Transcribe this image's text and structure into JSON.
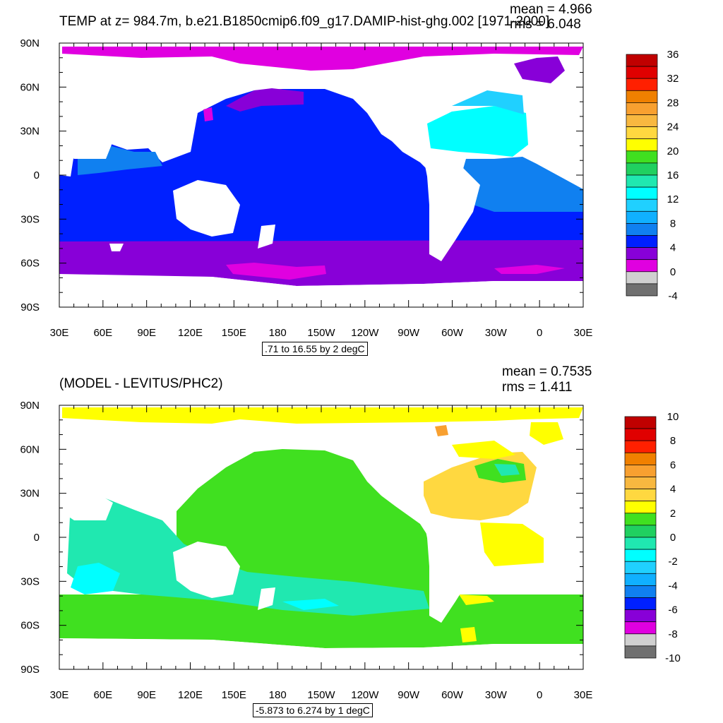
{
  "panels": [
    {
      "title": "TEMP at z= 984.7m, b.e21.B1850cmip6.f09_g17.DAMIP-hist-ghg.002 [1971-2000]",
      "stats": {
        "mean": "mean = 4.966",
        "rms": "rms = 6.048"
      },
      "contour_info": ".71 to 16.55 by 2 degC",
      "colorbar": {
        "labels": [
          "36",
          "32",
          "28",
          "24",
          "20",
          "16",
          "12",
          "8",
          "4",
          "0",
          "-4"
        ],
        "colors": [
          "#c00000",
          "#e00000",
          "#ff2000",
          "#f08000",
          "#f8a030",
          "#f8b840",
          "#ffd840",
          "#ffff00",
          "#40e020",
          "#20d060",
          "#20e8b0",
          "#00ffff",
          "#20d0ff",
          "#10b0ff",
          "#1080f0",
          "#0020ff",
          "#8800d8",
          "#e000e0",
          "#d0d0d0",
          "#707070"
        ]
      },
      "x_ticks": [
        "30E",
        "60E",
        "90E",
        "120E",
        "150E",
        "180",
        "150W",
        "120W",
        "90W",
        "60W",
        "30W",
        "0",
        "30E"
      ],
      "y_ticks": [
        "90N",
        "60N",
        "30N",
        "0",
        "30S",
        "60S",
        "90S"
      ]
    },
    {
      "title": "(MODEL - LEVITUS/PHC2)",
      "stats": {
        "mean": "mean = 0.7535",
        "rms": "rms = 1.411"
      },
      "contour_info": "-5.873 to 6.274 by 1 degC",
      "colorbar": {
        "labels": [
          "10",
          "8",
          "6",
          "4",
          "2",
          "0",
          "-2",
          "-4",
          "-6",
          "-8",
          "-10"
        ],
        "colors": [
          "#c00000",
          "#e00000",
          "#ff2000",
          "#f08000",
          "#f8a030",
          "#f8b840",
          "#ffd840",
          "#ffff00",
          "#40e020",
          "#20d060",
          "#20e8b0",
          "#00ffff",
          "#20d0ff",
          "#10b0ff",
          "#1080f0",
          "#0020ff",
          "#8800d8",
          "#e000e0",
          "#d0d0d0",
          "#707070"
        ]
      },
      "x_ticks": [
        "30E",
        "60E",
        "90E",
        "120E",
        "150E",
        "180",
        "150W",
        "120W",
        "90W",
        "60W",
        "30W",
        "0",
        "30E"
      ],
      "y_ticks": [
        "90N",
        "60N",
        "30N",
        "0",
        "30S",
        "60S",
        "90S"
      ]
    }
  ],
  "chart_data": [
    {
      "type": "heatmap",
      "title": "TEMP at z= 984.7m, b.e21.B1850cmip6.f09_g17.DAMIP-hist-ghg.002 [1971-2000]",
      "xlim": [
        "30E",
        "30E"
      ],
      "ylim": [
        "90S",
        "90N"
      ],
      "colorbar_levels": [
        -4,
        -2,
        0,
        2,
        4,
        6,
        8,
        10,
        12,
        14,
        16,
        18,
        20,
        22,
        24,
        26,
        28,
        30,
        32,
        34,
        36
      ],
      "mean": 4.966,
      "rms": 6.048,
      "contour_info": ".71 to 16.55 by 2 degC"
    },
    {
      "type": "heatmap",
      "title": "(MODEL - LEVITUS/PHC2)",
      "xlim": [
        "30E",
        "30E"
      ],
      "ylim": [
        "90S",
        "90N"
      ],
      "colorbar_levels": [
        -10,
        -9,
        -8,
        -7,
        -6,
        -5,
        -4,
        -3,
        -2,
        -1,
        0,
        1,
        2,
        3,
        4,
        5,
        6,
        7,
        8,
        9,
        10
      ],
      "mean": 0.7535,
      "rms": 1.411,
      "contour_info": "-5.873 to 6.274 by 1 degC"
    }
  ]
}
